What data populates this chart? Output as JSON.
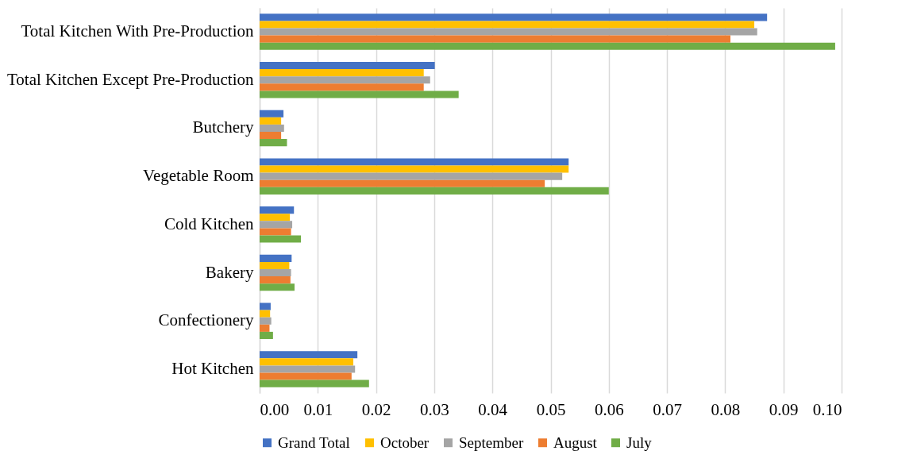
{
  "chart_data": {
    "type": "bar",
    "orientation": "horizontal",
    "categories": [
      "Total Kitchen With Pre-Production",
      "Total Kitchen Except Pre-Production",
      "Butchery",
      "Vegetable Room",
      "Cold Kitchen",
      "Bakery",
      "Confectionery",
      "Hot Kitchen"
    ],
    "series": [
      {
        "name": "Grand Total",
        "color": "#4472c4",
        "values": [
          0.0872,
          0.0301,
          0.0041,
          0.0531,
          0.0059,
          0.0055,
          0.0019,
          0.0168
        ]
      },
      {
        "name": "October",
        "color": "#ffc000",
        "values": [
          0.085,
          0.0282,
          0.0037,
          0.0531,
          0.0052,
          0.0051,
          0.0018,
          0.0161
        ]
      },
      {
        "name": "September",
        "color": "#a5a5a5",
        "values": [
          0.0855,
          0.0293,
          0.0042,
          0.052,
          0.0056,
          0.0054,
          0.002,
          0.0164
        ]
      },
      {
        "name": "August",
        "color": "#ed7d31",
        "values": [
          0.0809,
          0.0282,
          0.0037,
          0.049,
          0.0054,
          0.0053,
          0.0017,
          0.0158
        ]
      },
      {
        "name": "July",
        "color": "#70ad47",
        "values": [
          0.0989,
          0.0342,
          0.0047,
          0.06,
          0.0071,
          0.006,
          0.0023,
          0.0188
        ]
      }
    ],
    "xlim": [
      0,
      0.1
    ],
    "xticks": [
      {
        "value": 0,
        "label": "0.00"
      },
      {
        "value": 0.01,
        "label": "0.01"
      },
      {
        "value": 0.02,
        "label": "0.02"
      },
      {
        "value": 0.03,
        "label": "0.03"
      },
      {
        "value": 0.04,
        "label": "0.04"
      },
      {
        "value": 0.05,
        "label": "0.05"
      },
      {
        "value": 0.06,
        "label": "0.06"
      },
      {
        "value": 0.07,
        "label": "0.07"
      },
      {
        "value": 0.08,
        "label": "0.08"
      },
      {
        "value": 0.09,
        "label": "0.09"
      },
      {
        "value": 0.1,
        "label": "0.10"
      }
    ],
    "grid": "x",
    "legend": "bottom"
  }
}
